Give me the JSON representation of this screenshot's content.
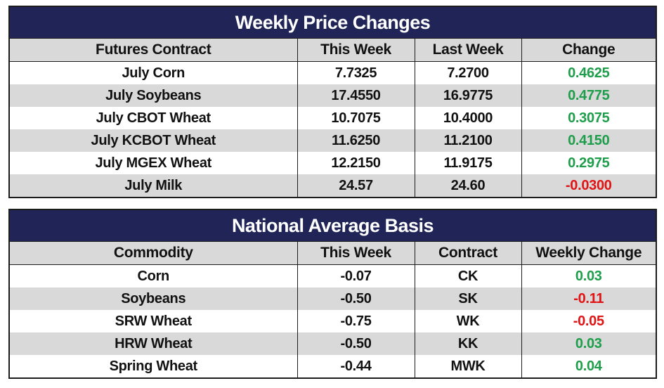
{
  "weekly": {
    "title": "Weekly Price Changes",
    "headers": [
      "Futures Contract",
      "This Week",
      "Last Week",
      "Change"
    ],
    "rows": [
      {
        "contract": "July Corn",
        "this_week": "7.7325",
        "last_week": "7.2700",
        "change": "0.4625",
        "sign": "pos"
      },
      {
        "contract": "July Soybeans",
        "this_week": "17.4550",
        "last_week": "16.9775",
        "change": "0.4775",
        "sign": "pos"
      },
      {
        "contract": "July CBOT Wheat",
        "this_week": "10.7075",
        "last_week": "10.4000",
        "change": "0.3075",
        "sign": "pos"
      },
      {
        "contract": "July KCBOT Wheat",
        "this_week": "11.6250",
        "last_week": "11.2100",
        "change": "0.4150",
        "sign": "pos"
      },
      {
        "contract": "July MGEX Wheat",
        "this_week": "12.2150",
        "last_week": "11.9175",
        "change": "0.2975",
        "sign": "pos"
      },
      {
        "contract": "July Milk",
        "this_week": "24.57",
        "last_week": "24.60",
        "change": "-0.0300",
        "sign": "neg"
      }
    ]
  },
  "basis": {
    "title": "National Average Basis",
    "headers": [
      "Commodity",
      "This Week",
      "Contract",
      "Weekly Change"
    ],
    "rows": [
      {
        "commodity": "Corn",
        "this_week": "-0.07",
        "contract": "CK",
        "change": "0.03",
        "sign": "pos"
      },
      {
        "commodity": "Soybeans",
        "this_week": "-0.50",
        "contract": "SK",
        "change": "-0.11",
        "sign": "neg"
      },
      {
        "commodity": "SRW Wheat",
        "this_week": "-0.75",
        "contract": "WK",
        "change": "-0.05",
        "sign": "neg"
      },
      {
        "commodity": "HRW Wheat",
        "this_week": "-0.50",
        "contract": "KK",
        "change": "0.03",
        "sign": "pos"
      },
      {
        "commodity": "Spring Wheat",
        "this_week": "-0.44",
        "contract": "MWK",
        "change": "0.04",
        "sign": "pos"
      }
    ]
  },
  "colors": {
    "title_bg": "#202457",
    "header_bg": "#d9d9d9",
    "positive": "#1e9e4a",
    "negative": "#e01414"
  }
}
